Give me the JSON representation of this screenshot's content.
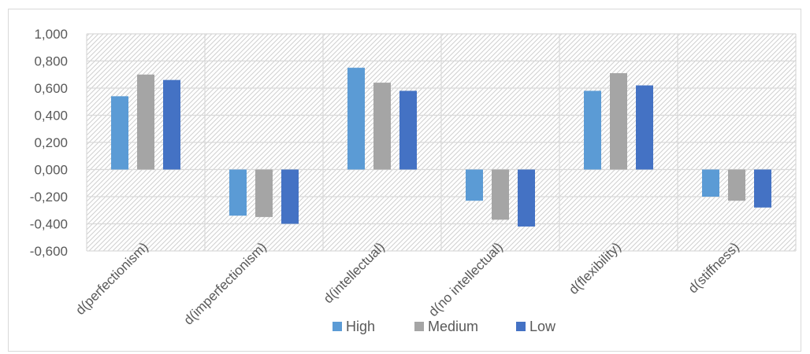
{
  "chart_data": {
    "type": "bar",
    "title": "",
    "xlabel": "",
    "ylabel": "",
    "categories": [
      "d(perfectionism)",
      "d(imperfectionism)",
      "d(intellectual)",
      "d(no intellectual)",
      "d(flexibility)",
      "d(stiffness)"
    ],
    "series": [
      {
        "name": "High",
        "color": "#5b9bd5",
        "values": [
          0.54,
          -0.34,
          0.75,
          -0.23,
          0.58,
          -0.2
        ]
      },
      {
        "name": "Medium",
        "color": "#a5a5a5",
        "values": [
          0.7,
          -0.35,
          0.64,
          -0.37,
          0.71,
          -0.23
        ]
      },
      {
        "name": "Low",
        "color": "#4472c4",
        "values": [
          0.66,
          -0.4,
          0.58,
          -0.42,
          0.62,
          -0.28
        ]
      }
    ],
    "ylim": [
      -0.6,
      1.0
    ],
    "yticks": [
      -0.6,
      -0.4,
      -0.2,
      0.0,
      0.2,
      0.4,
      0.6,
      0.8,
      1.0
    ],
    "ytick_labels": [
      "-0,600",
      "-0,400",
      "-0,200",
      "0,000",
      "0,200",
      "0,400",
      "0,600",
      "0,800",
      "1,000"
    ],
    "grid": true,
    "legend_position": "bottom"
  }
}
